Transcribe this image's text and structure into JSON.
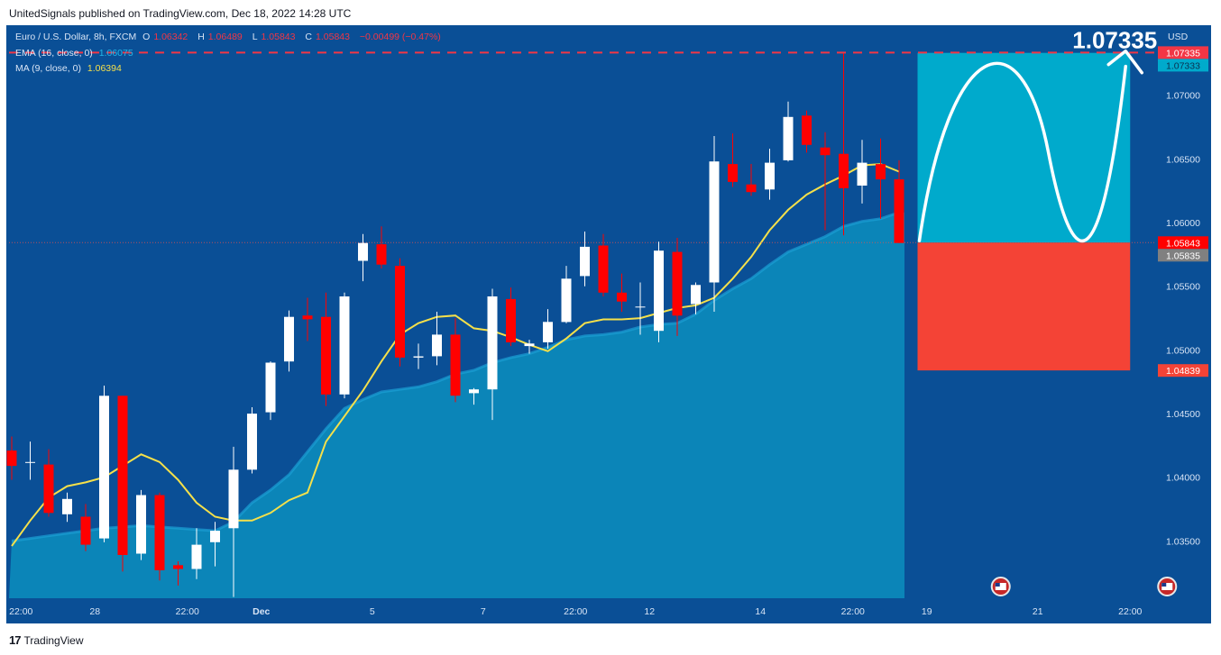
{
  "header": {
    "publish_line": "UnitedSignals published on TradingView.com, Dec 18, 2022 14:28 UTC"
  },
  "footer": {
    "logo_mark": "17",
    "logo_text": "TradingView"
  },
  "legend": {
    "symbol": "Euro / U.S. Dollar, 8h, FXCM",
    "o_label": "O",
    "o_value": "1.06342",
    "h_label": "H",
    "h_value": "1.06489",
    "l_label": "L",
    "l_value": "1.05843",
    "c_label": "C",
    "c_value": "1.05843",
    "change": "−0.00499 (−0.47%)",
    "ema_label": "EMA (16, close, 0)",
    "ema_value": "1.06075",
    "ma_label": "MA (9, close, 0)",
    "ma_value": "1.06394"
  },
  "colors": {
    "background": "#0a4f96",
    "area": "#0b85b8",
    "up_candle": "#ffffff",
    "down_candle": "#ff0000",
    "ma_line": "#f5e04a",
    "target_zone": "#00aacc",
    "stop_zone": "#f44336",
    "target_line": "#f23645"
  },
  "chart_data": {
    "type": "candlestick",
    "symbol": "EURUSD",
    "interval": "8h",
    "ylim": [
      1.0305,
      1.0755
    ],
    "currency_label": "USD",
    "y_ticks": [
      1.035,
      1.04,
      1.045,
      1.05,
      1.055,
      1.06,
      1.065,
      1.07
    ],
    "y_tick_labels": [
      "1.03500",
      "1.04000",
      "1.04500",
      "1.05000",
      "1.05500",
      "1.06000",
      "1.06500",
      "1.07000"
    ],
    "x_tick_labels": [
      "22:00",
      "28",
      "22:00",
      "Dec",
      "5",
      "7",
      "22:00",
      "12",
      "14",
      "22:00",
      "19",
      "21",
      "22:00"
    ],
    "x_tick_slots": [
      0.5,
      4.5,
      9.5,
      13.5,
      19.5,
      25.5,
      30.5,
      34.5,
      40.5,
      45.5,
      49.5,
      55.5,
      60.5
    ],
    "candles": [
      {
        "o": 1.0421,
        "h": 1.0432,
        "l": 1.0398,
        "c": 1.0409
      },
      {
        "o": 1.0412,
        "h": 1.0428,
        "l": 1.0398,
        "c": 1.0412
      },
      {
        "o": 1.041,
        "h": 1.0422,
        "l": 1.0369,
        "c": 1.0372
      },
      {
        "o": 1.0371,
        "h": 1.0388,
        "l": 1.0365,
        "c": 1.0383
      },
      {
        "o": 1.0369,
        "h": 1.0379,
        "l": 1.0342,
        "c": 1.0347
      },
      {
        "o": 1.0352,
        "h": 1.0472,
        "l": 1.0349,
        "c": 1.0464
      },
      {
        "o": 1.0464,
        "h": 1.0464,
        "l": 1.0326,
        "c": 1.0339
      },
      {
        "o": 1.034,
        "h": 1.039,
        "l": 1.0335,
        "c": 1.0386
      },
      {
        "o": 1.0386,
        "h": 1.0388,
        "l": 1.0319,
        "c": 1.0327
      },
      {
        "o": 1.0331,
        "h": 1.0334,
        "l": 1.0315,
        "c": 1.0328
      },
      {
        "o": 1.0328,
        "h": 1.036,
        "l": 1.032,
        "c": 1.0347
      },
      {
        "o": 1.0349,
        "h": 1.0365,
        "l": 1.033,
        "c": 1.0358
      },
      {
        "o": 1.036,
        "h": 1.0424,
        "l": 1.0306,
        "c": 1.0406
      },
      {
        "o": 1.0406,
        "h": 1.0455,
        "l": 1.0403,
        "c": 1.045
      },
      {
        "o": 1.0451,
        "h": 1.0491,
        "l": 1.0445,
        "c": 1.049
      },
      {
        "o": 1.0491,
        "h": 1.0531,
        "l": 1.0483,
        "c": 1.0526
      },
      {
        "o": 1.0527,
        "h": 1.0541,
        "l": 1.0507,
        "c": 1.0524
      },
      {
        "o": 1.0526,
        "h": 1.0545,
        "l": 1.0456,
        "c": 1.0465
      },
      {
        "o": 1.0465,
        "h": 1.0545,
        "l": 1.0462,
        "c": 1.0542
      },
      {
        "o": 1.057,
        "h": 1.0591,
        "l": 1.0554,
        "c": 1.0584
      },
      {
        "o": 1.0583,
        "h": 1.0597,
        "l": 1.0564,
        "c": 1.0567
      },
      {
        "o": 1.0566,
        "h": 1.0572,
        "l": 1.0487,
        "c": 1.0494
      },
      {
        "o": 1.0494,
        "h": 1.0505,
        "l": 1.0485,
        "c": 1.0495
      },
      {
        "o": 1.0495,
        "h": 1.053,
        "l": 1.0488,
        "c": 1.0512
      },
      {
        "o": 1.0512,
        "h": 1.0525,
        "l": 1.0459,
        "c": 1.0464
      },
      {
        "o": 1.0466,
        "h": 1.047,
        "l": 1.0457,
        "c": 1.0469
      },
      {
        "o": 1.0469,
        "h": 1.0548,
        "l": 1.0445,
        "c": 1.0542
      },
      {
        "o": 1.054,
        "h": 1.0549,
        "l": 1.0503,
        "c": 1.0506
      },
      {
        "o": 1.0503,
        "h": 1.0508,
        "l": 1.0497,
        "c": 1.0505
      },
      {
        "o": 1.0506,
        "h": 1.0532,
        "l": 1.0501,
        "c": 1.0522
      },
      {
        "o": 1.0522,
        "h": 1.0566,
        "l": 1.0521,
        "c": 1.0556
      },
      {
        "o": 1.0558,
        "h": 1.0593,
        "l": 1.055,
        "c": 1.0581
      },
      {
        "o": 1.0582,
        "h": 1.0591,
        "l": 1.0542,
        "c": 1.0545
      },
      {
        "o": 1.0545,
        "h": 1.056,
        "l": 1.053,
        "c": 1.0538
      },
      {
        "o": 1.0534,
        "h": 1.0553,
        "l": 1.0512,
        "c": 1.0534
      },
      {
        "o": 1.0515,
        "h": 1.0585,
        "l": 1.0506,
        "c": 1.0578
      },
      {
        "o": 1.0577,
        "h": 1.0588,
        "l": 1.0511,
        "c": 1.0527
      },
      {
        "o": 1.0536,
        "h": 1.0553,
        "l": 1.0528,
        "c": 1.0551
      },
      {
        "o": 1.0553,
        "h": 1.0668,
        "l": 1.053,
        "c": 1.0648
      },
      {
        "o": 1.0646,
        "h": 1.067,
        "l": 1.0628,
        "c": 1.0632
      },
      {
        "o": 1.063,
        "h": 1.0646,
        "l": 1.0621,
        "c": 1.0624
      },
      {
        "o": 1.0626,
        "h": 1.0658,
        "l": 1.0618,
        "c": 1.0647
      },
      {
        "o": 1.0649,
        "h": 1.0695,
        "l": 1.0648,
        "c": 1.0683
      },
      {
        "o": 1.0684,
        "h": 1.0688,
        "l": 1.0655,
        "c": 1.0661
      },
      {
        "o": 1.0659,
        "h": 1.0671,
        "l": 1.0594,
        "c": 1.0653
      },
      {
        "o": 1.0654,
        "h": 1.0733,
        "l": 1.059,
        "c": 1.0627
      },
      {
        "o": 1.0629,
        "h": 1.0665,
        "l": 1.0615,
        "c": 1.0647
      },
      {
        "o": 1.0646,
        "h": 1.0666,
        "l": 1.0603,
        "c": 1.0634
      },
      {
        "o": 1.0634,
        "h": 1.0649,
        "l": 1.0584,
        "c": 1.0584
      }
    ],
    "ma_series": [
      1.0346,
      1.0366,
      1.0384,
      1.0393,
      1.0396,
      1.04,
      1.0409,
      1.0418,
      1.0412,
      1.0398,
      1.038,
      1.0369,
      1.0366,
      1.0366,
      1.0372,
      1.0382,
      1.0388,
      1.0428,
      1.0448,
      1.0468,
      1.0491,
      1.0512,
      1.0521,
      1.0526,
      1.0527,
      1.0517,
      1.0515,
      1.051,
      1.0504,
      1.0499,
      1.0509,
      1.0521,
      1.0524,
      1.0524,
      1.0525,
      1.0529,
      1.0533,
      1.0535,
      1.0541,
      1.0556,
      1.0573,
      1.0594,
      1.061,
      1.0622,
      1.063,
      1.0637,
      1.0645,
      1.0646,
      1.064
    ],
    "ema_series": [
      1.035,
      1.0352,
      1.0354,
      1.0356,
      1.0358,
      1.036,
      1.0361,
      1.0362,
      1.0361,
      1.036,
      1.0359,
      1.0358,
      1.0365,
      1.038,
      1.039,
      1.0402,
      1.042,
      1.0438,
      1.0454,
      1.0461,
      1.0467,
      1.0469,
      1.0471,
      1.0475,
      1.0481,
      1.0484,
      1.049,
      1.0494,
      1.0497,
      1.0502,
      1.0508,
      1.0511,
      1.0512,
      1.0514,
      1.0518,
      1.052,
      1.0521,
      1.0528,
      1.0539,
      1.0548,
      1.0556,
      1.0567,
      1.0577,
      1.0583,
      1.0589,
      1.0597,
      1.0601,
      1.0603,
      1.0608
    ],
    "position": {
      "entry": 1.05843,
      "target": 1.07333,
      "stop": 1.04839,
      "target_line": 1.07335,
      "start_slot": 49.0,
      "end_slot": 60.5
    },
    "target_annotation": "1.07335",
    "price_labels": [
      {
        "value": 1.07335,
        "text": "1.07335",
        "color": "#f23645"
      },
      {
        "value": 1.07333,
        "text": "1.07333",
        "color": "#00aacc"
      },
      {
        "value": 1.05843,
        "text": "1.05843",
        "color": "#ff0000"
      },
      {
        "value": 1.05835,
        "text": "1.05835",
        "color": "#808080"
      },
      {
        "value": 1.04839,
        "text": "1.04839",
        "color": "#f44336"
      }
    ],
    "event_markers": [
      {
        "slot": 53.5
      },
      {
        "slot": 62.5
      }
    ]
  }
}
